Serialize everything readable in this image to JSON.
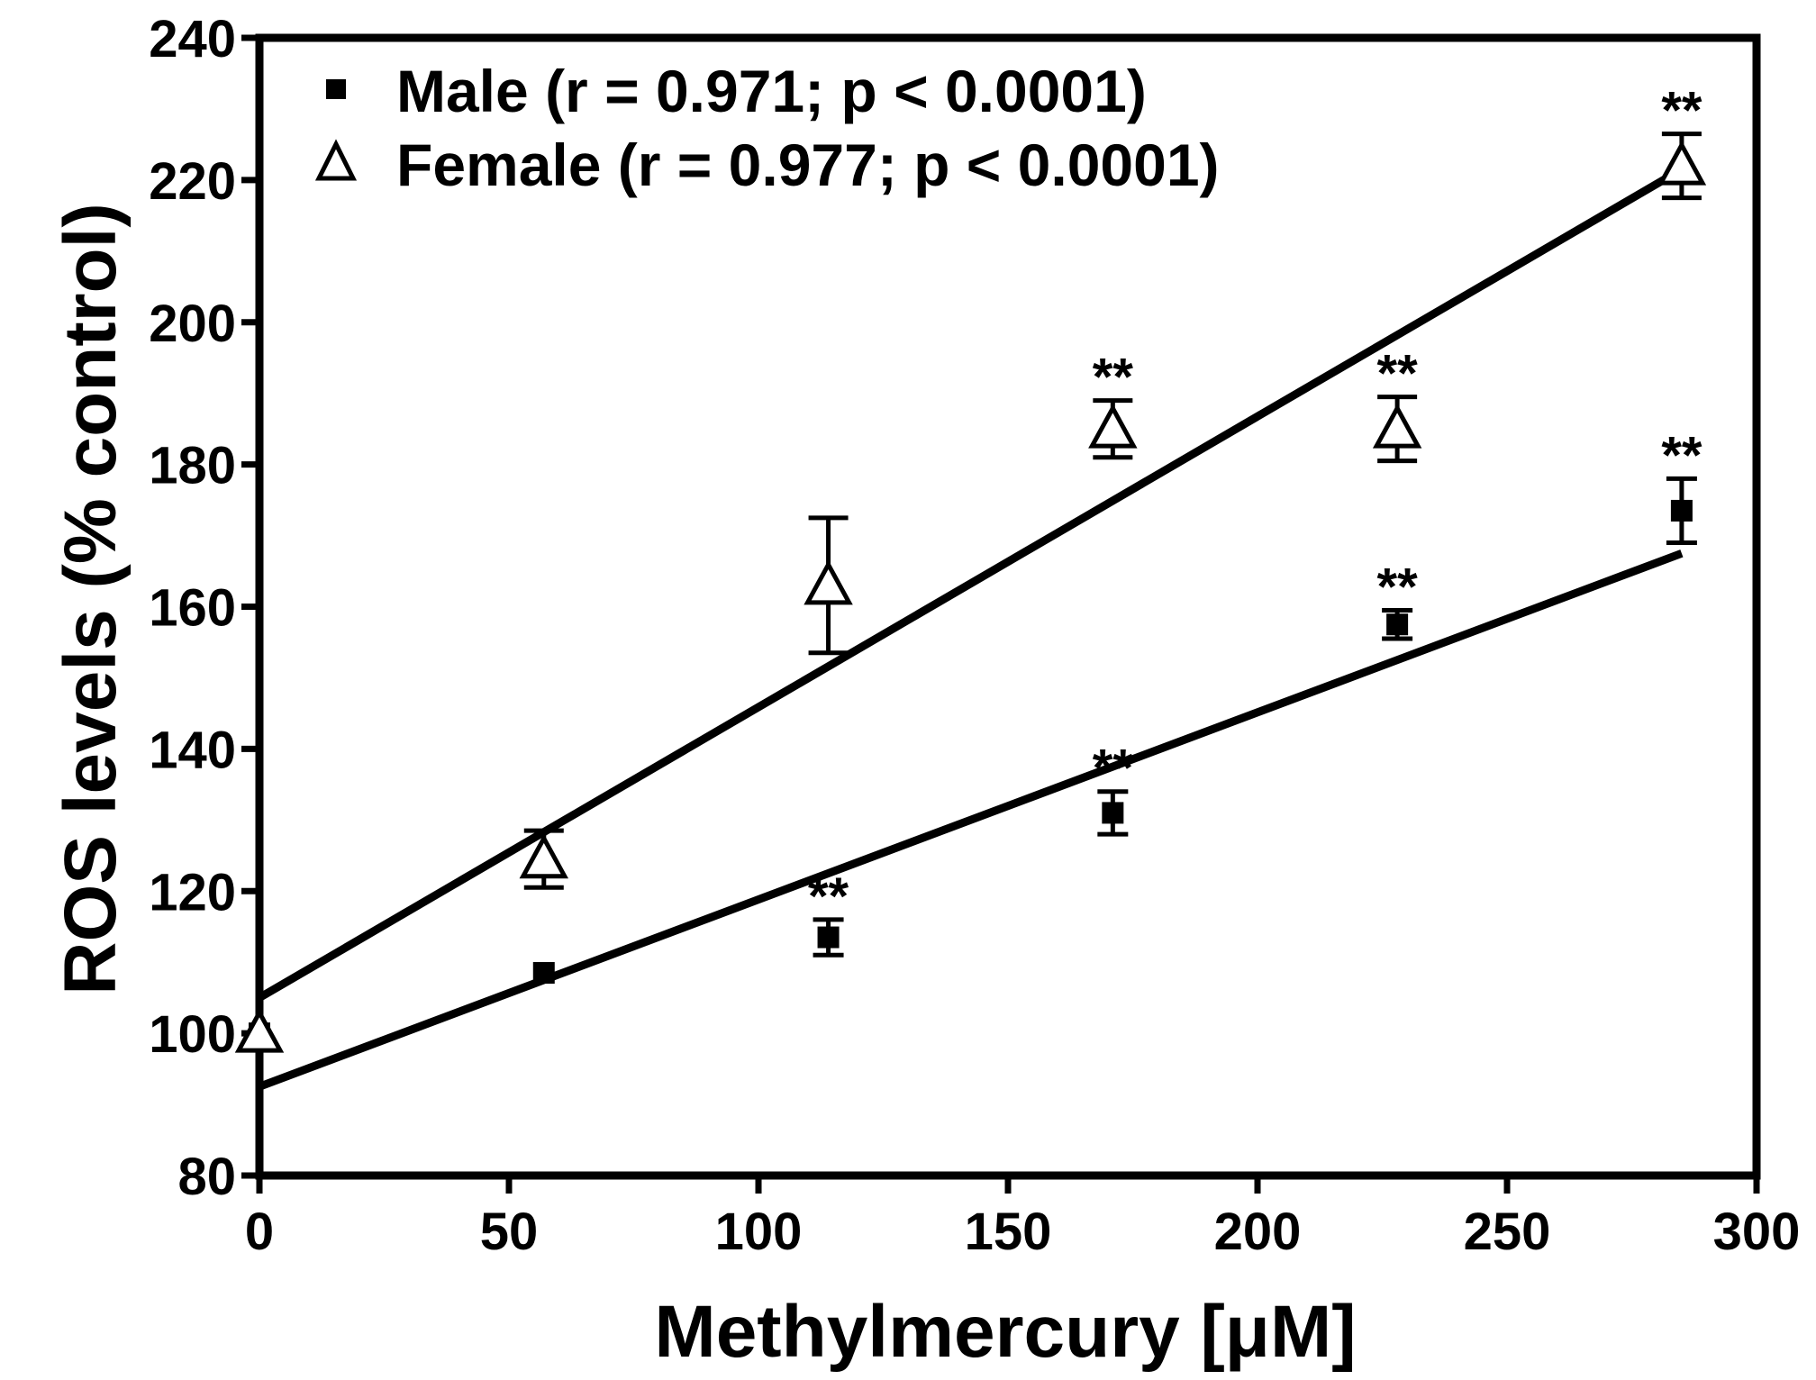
{
  "chart_data": {
    "type": "scatter",
    "title": "",
    "xlabel": "Methylmercury [μM]",
    "ylabel": "ROS levels (% control)",
    "xlim": [
      0,
      300
    ],
    "ylim": [
      80,
      240
    ],
    "xticks": [
      0,
      50,
      100,
      150,
      200,
      250,
      300
    ],
    "yticks": [
      80,
      100,
      120,
      140,
      160,
      180,
      200,
      220,
      240
    ],
    "x": [
      0,
      57,
      114,
      171,
      228,
      285
    ],
    "grid": false,
    "legend_position": "top-left",
    "series": [
      {
        "name": "Male (r = 0.971; p < 0.0001)",
        "marker": "filled-square",
        "values": [
          100,
          108.5,
          113.5,
          131,
          157.5,
          173.5
        ],
        "errors": [
          0,
          0,
          2.5,
          3,
          2,
          4.5
        ],
        "significance": [
          "",
          "",
          "**",
          "**",
          "**",
          "**"
        ],
        "fit_line": {
          "intercept": 92.5,
          "end": [
            285,
            167.5
          ]
        }
      },
      {
        "name": "Female (r = 0.977; p < 0.0001)",
        "marker": "open-triangle",
        "values": [
          100,
          124.5,
          163,
          185,
          185,
          222
        ],
        "errors": [
          0,
          4,
          9.5,
          4,
          4.5,
          4.5
        ],
        "significance": [
          "",
          "",
          "",
          "**",
          "**",
          "**"
        ],
        "fit_line": {
          "intercept": 105,
          "end": [
            285,
            221.5
          ]
        }
      }
    ]
  }
}
